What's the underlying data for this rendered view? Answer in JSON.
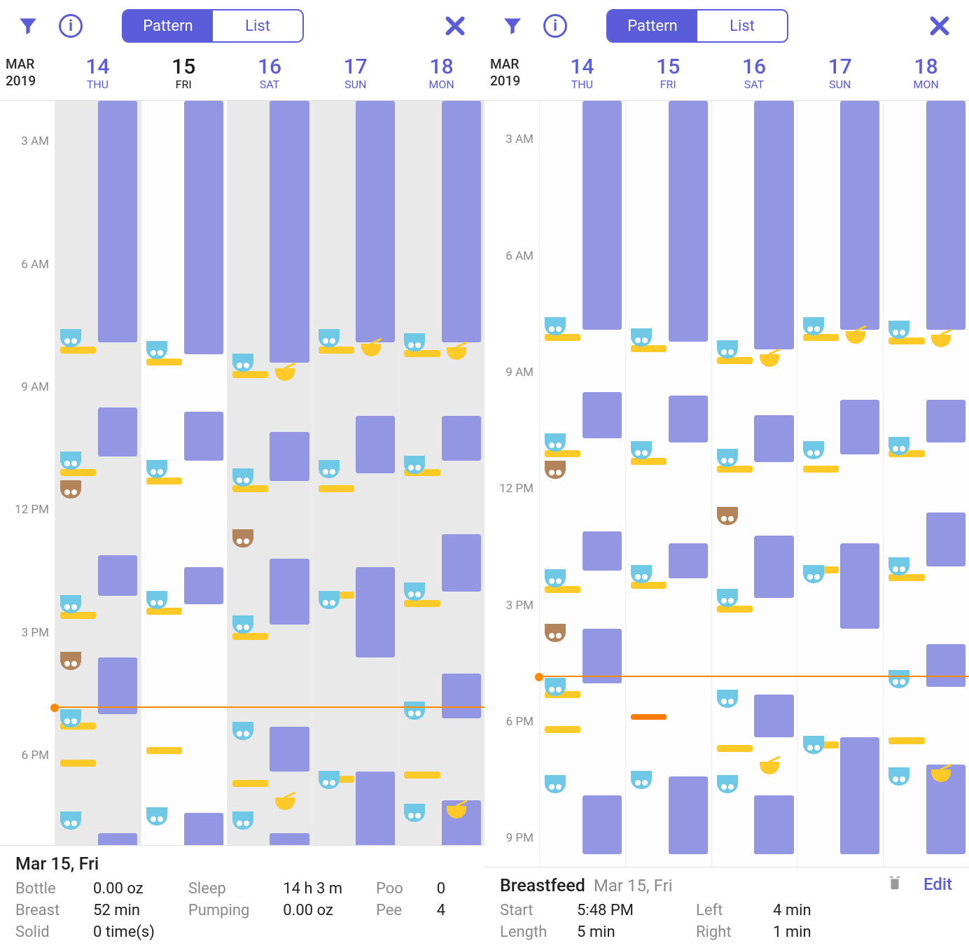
{
  "colors": {
    "accent": "#5a5cda",
    "sleep": "#9397e3",
    "feed": "#ffc928",
    "feedHighlight": "#ff7b00",
    "diaperPee": "#6fc8e6",
    "diaperPoo": "#b3835a",
    "nowLine": "#ff8a00",
    "textMuted": "#8a8a8a",
    "text": "#222222",
    "shadeCol": "#e9e9e9"
  },
  "timeline": {
    "startHour": 2,
    "endHour": 21,
    "pxPerHour": 49.5,
    "labels": [
      "3 AM",
      "6 AM",
      "9 AM",
      "12 PM",
      "3 PM",
      "6 PM",
      "9 PM"
    ],
    "labelHours": [
      3,
      6,
      9,
      12,
      15,
      18,
      21
    ],
    "nowHour": 16.8
  },
  "toolbar": {
    "pattern": "Pattern",
    "list": "List"
  },
  "header": {
    "month": "MAR",
    "year": "2019",
    "days": [
      {
        "num": "14",
        "name": "THU"
      },
      {
        "num": "15",
        "name": "FRI"
      },
      {
        "num": "16",
        "name": "SAT"
      },
      {
        "num": "17",
        "name": "SUN"
      },
      {
        "num": "18",
        "name": "MON"
      }
    ]
  },
  "dayEvents": [
    {
      "sleeps": [
        [
          2,
          7.9
        ],
        [
          9.5,
          10.7
        ],
        [
          13.1,
          14.1
        ],
        [
          15.6,
          17.0
        ],
        [
          19.9,
          21.4
        ]
      ],
      "feeds": [
        [
          8.0
        ],
        [
          11.0
        ],
        [
          14.5
        ],
        [
          17.2
        ],
        [
          18.1
        ]
      ],
      "diapers": [
        [
          "pee",
          7.8
        ],
        [
          "pee",
          10.8
        ],
        [
          "poo",
          11.5
        ],
        [
          "pee",
          14.3
        ],
        [
          "poo",
          15.7
        ],
        [
          "pee",
          17.1
        ],
        [
          "pee",
          19.6
        ]
      ],
      "solids": []
    },
    {
      "sleeps": [
        [
          2,
          8.2
        ],
        [
          9.6,
          10.8
        ],
        [
          13.4,
          14.3
        ],
        [
          19.4,
          21.4
        ]
      ],
      "feeds": [
        [
          8.3
        ],
        [
          11.2
        ],
        [
          14.4
        ],
        [
          17.8
        ]
      ],
      "diapers": [
        [
          "pee",
          8.1
        ],
        [
          "pee",
          11.0
        ],
        [
          "pee",
          14.2
        ],
        [
          "pee",
          19.5
        ]
      ],
      "solids": []
    },
    {
      "sleeps": [
        [
          2,
          8.4
        ],
        [
          10.1,
          11.3
        ],
        [
          13.2,
          14.8
        ],
        [
          17.3,
          18.4
        ],
        [
          19.9,
          21.4
        ]
      ],
      "feeds": [
        [
          8.6
        ],
        [
          11.4
        ],
        [
          15.0
        ],
        [
          18.6
        ]
      ],
      "diapers": [
        [
          "pee",
          8.4
        ],
        [
          "pee",
          11.2
        ],
        [
          "poo",
          12.7
        ],
        [
          "pee",
          14.8
        ],
        [
          "pee",
          17.4
        ],
        [
          "pee",
          19.6
        ]
      ],
      "solids": [
        [
          8.6
        ],
        [
          19.1
        ]
      ]
    },
    {
      "sleeps": [
        [
          2,
          7.9
        ],
        [
          9.7,
          11.1
        ],
        [
          13.4,
          15.6
        ],
        [
          18.4,
          21.4
        ]
      ],
      "feeds": [
        [
          8.0
        ],
        [
          11.4
        ],
        [
          14.0
        ],
        [
          18.5
        ]
      ],
      "diapers": [
        [
          "pee",
          7.8
        ],
        [
          "pee",
          11.0
        ],
        [
          "pee",
          14.2
        ],
        [
          "pee",
          18.6
        ]
      ],
      "solids": [
        [
          8.0
        ]
      ]
    },
    {
      "sleeps": [
        [
          2,
          7.9
        ],
        [
          9.7,
          10.8
        ],
        [
          12.6,
          14.0
        ],
        [
          16.0,
          17.1
        ],
        [
          19.1,
          21.4
        ]
      ],
      "feeds": [
        [
          8.1
        ],
        [
          11.0
        ],
        [
          14.2
        ],
        [
          18.4
        ]
      ],
      "diapers": [
        [
          "pee",
          7.9
        ],
        [
          "pee",
          10.9
        ],
        [
          "pee",
          14.0
        ],
        [
          "pee",
          16.9
        ],
        [
          "pee",
          19.4
        ]
      ],
      "solids": [
        [
          8.1
        ],
        [
          19.3
        ]
      ]
    }
  ],
  "panelLeft": {
    "selectedIndex": 1,
    "shadeOthers": true,
    "visibleHours": 17.8,
    "footer": {
      "title": "Mar 15, Fri",
      "stats": [
        [
          "Bottle",
          "0.00 oz",
          "Sleep",
          "14 h 3 m",
          "Poo",
          "0"
        ],
        [
          "Breast",
          "52 min",
          "Pumping",
          "0.00 oz",
          "Pee",
          "4"
        ],
        [
          "Solid",
          "0 time(s)",
          "",
          "",
          "",
          ""
        ]
      ]
    }
  },
  "panelRight": {
    "selectedIndex": -1,
    "shadeOthers": false,
    "visibleHours": 19.3,
    "highlightFeed": {
      "day": 1,
      "hour": 17.8
    },
    "footer": {
      "title": "Breastfeed",
      "subtitle": "Mar 15, Fri",
      "edit": "Edit",
      "rows": [
        [
          "Start",
          "5:48 PM",
          "Left",
          "4 min"
        ],
        [
          "Length",
          "5 min",
          "Right",
          "1 min"
        ]
      ]
    }
  }
}
